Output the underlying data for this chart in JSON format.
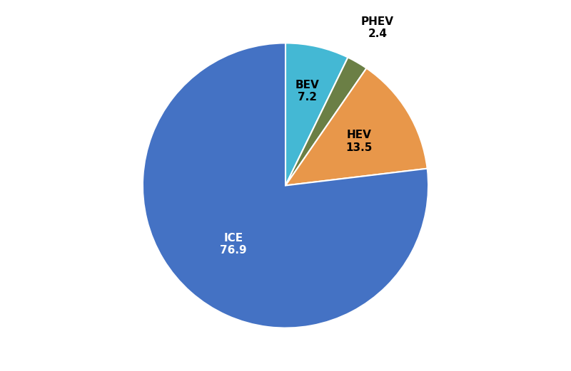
{
  "labels": [
    "BEV",
    "PHEV",
    "HEV",
    "ICE"
  ],
  "values": [
    7.2,
    2.4,
    13.5,
    76.9
  ],
  "colors": [
    "#44B8D4",
    "#6B7F45",
    "#E8974A",
    "#4472C4"
  ],
  "startangle": 90,
  "counterclock": false,
  "wedge_edge_color": "white",
  "wedge_linewidth": 1.5,
  "label_fontsize": 11,
  "label_configs": {
    "ICE": {
      "r": 0.55,
      "color": "white",
      "ha": "center",
      "va": "center"
    },
    "BEV": {
      "r": 0.68,
      "color": "black",
      "ha": "center",
      "va": "center"
    },
    "HEV": {
      "r": 0.6,
      "color": "black",
      "ha": "center",
      "va": "center"
    },
    "PHEV": {
      "r": 1.28,
      "color": "black",
      "ha": "center",
      "va": "center"
    }
  },
  "background_color": "#ffffff"
}
